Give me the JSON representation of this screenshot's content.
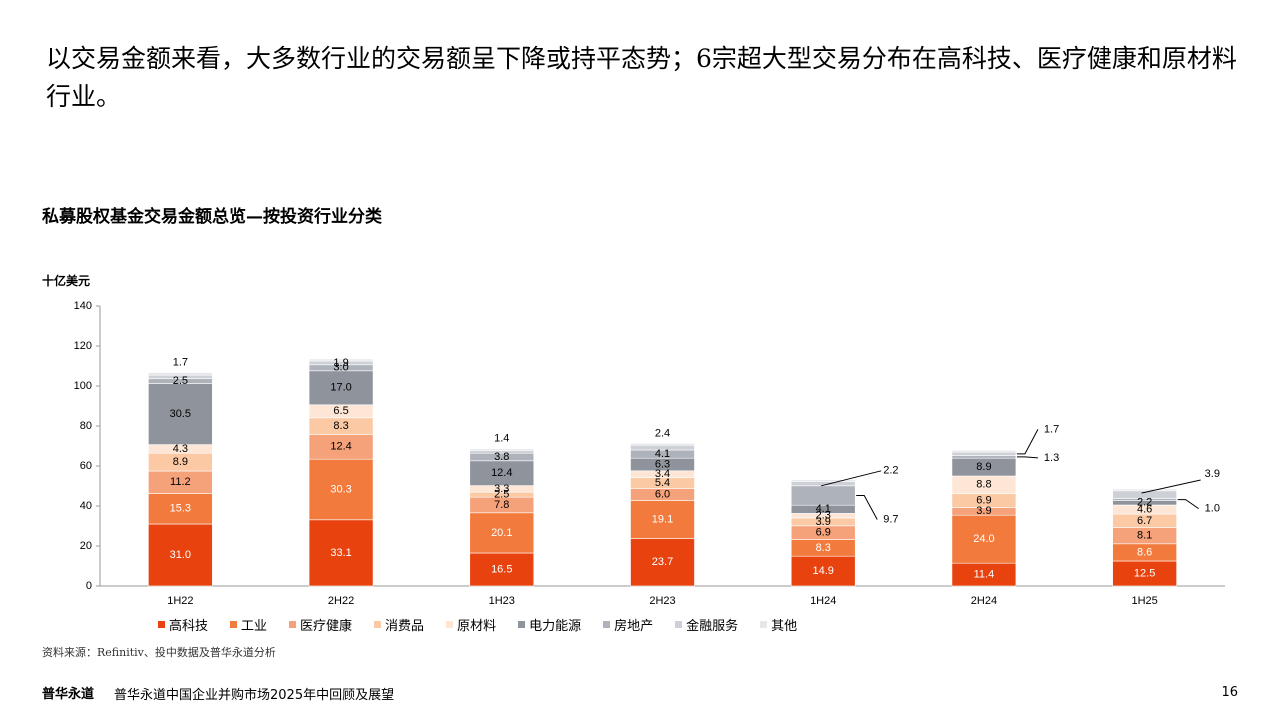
{
  "headline": "以交易金额来看，大多数行业的交易额呈下降或持平态势；6宗超大型交易分布在高科技、医疗健康和原材料行业。",
  "chart_title": "私募股权基金交易金额总览—按投资行业分类",
  "footer": {
    "source": "资料来源：Refinitiv、投中数据及普华永道分析",
    "brand": "普华永道",
    "report_title": "普华永道中国企业并购市场2025年中回顾及展望",
    "page_number": "16"
  },
  "chart_data": {
    "type": "bar",
    "stacked": true,
    "title": "私募股权基金交易金额总览—按投资行业分类",
    "ylabel": "十亿美元",
    "xlabel": "",
    "ylim": [
      0,
      140
    ],
    "yticks": [
      0,
      20,
      40,
      60,
      80,
      100,
      120,
      140
    ],
    "categories": [
      "1H22",
      "2H22",
      "1H23",
      "2H23",
      "1H24",
      "2H24",
      "1H25"
    ],
    "series": [
      {
        "name": "高科技",
        "color": "#E8430F",
        "label_color": "#ffffff",
        "values": [
          31.0,
          33.1,
          16.5,
          23.7,
          14.9,
          11.4,
          12.5
        ]
      },
      {
        "name": "工业",
        "color": "#F27A3C",
        "label_color": "#ffffff",
        "values": [
          15.3,
          30.3,
          20.1,
          19.1,
          8.3,
          24.0,
          8.6
        ]
      },
      {
        "name": "医疗健康",
        "color": "#F5A27A",
        "label_color": "#000000",
        "values": [
          11.2,
          12.4,
          7.8,
          6.0,
          6.9,
          3.9,
          8.1
        ]
      },
      {
        "name": "消费品",
        "color": "#FBC9A4",
        "label_color": "#000000",
        "values": [
          8.9,
          8.3,
          2.5,
          5.4,
          3.9,
          6.9,
          6.7
        ]
      },
      {
        "name": "原材料",
        "color": "#FDE6D5",
        "label_color": "#000000",
        "values": [
          4.3,
          6.5,
          3.3,
          3.4,
          2.3,
          8.8,
          4.6
        ]
      },
      {
        "name": "电力能源",
        "color": "#8F939C",
        "label_color": "#000000",
        "values": [
          30.5,
          17.0,
          12.4,
          6.3,
          4.1,
          8.9,
          2.2
        ]
      },
      {
        "name": "房地产",
        "color": "#AEB2BA",
        "label_color": "#000000",
        "values": [
          2.5,
          3.0,
          3.8,
          4.1,
          9.7,
          1.3,
          1.0
        ]
      },
      {
        "name": "金融服务",
        "color": "#CDD0D6",
        "label_color": "#000000",
        "values": [
          1.7,
          1.9,
          1.4,
          2.4,
          2.2,
          1.7,
          3.9
        ]
      },
      {
        "name": "其他",
        "color": "#E6E7EA",
        "label_color": "#000000",
        "values": [
          1.3,
          1.0,
          0.8,
          0.9,
          0.8,
          0.9,
          0.9
        ]
      }
    ],
    "data_labels": [
      {
        "category": "1H22",
        "series": "高科技",
        "text": "31.0"
      },
      {
        "category": "1H22",
        "series": "工业",
        "text": "15.3"
      },
      {
        "category": "1H22",
        "series": "医疗健康",
        "text": "11.2"
      },
      {
        "category": "1H22",
        "series": "消费品",
        "text": "8.9"
      },
      {
        "category": "1H22",
        "series": "原材料",
        "text": "4.3"
      },
      {
        "category": "1H22",
        "series": "电力能源",
        "text": "30.5"
      },
      {
        "category": "1H22",
        "series": "房地产",
        "text": "2.5"
      },
      {
        "category": "1H22",
        "series": "金融服务",
        "text": "1.7",
        "position": "above"
      },
      {
        "category": "2H22",
        "series": "高科技",
        "text": "33.1"
      },
      {
        "category": "2H22",
        "series": "工业",
        "text": "30.3"
      },
      {
        "category": "2H22",
        "series": "医疗健康",
        "text": "12.4"
      },
      {
        "category": "2H22",
        "series": "消费品",
        "text": "8.3"
      },
      {
        "category": "2H22",
        "series": "原材料",
        "text": "6.5"
      },
      {
        "category": "2H22",
        "series": "电力能源",
        "text": "17.0"
      },
      {
        "category": "2H22",
        "series": "房地产",
        "text": "3.0"
      },
      {
        "category": "2H22",
        "series": "金融服务",
        "text": "1.9"
      },
      {
        "category": "1H23",
        "series": "高科技",
        "text": "16.5"
      },
      {
        "category": "1H23",
        "series": "工业",
        "text": "20.1"
      },
      {
        "category": "1H23",
        "series": "医疗健康",
        "text": "7.8"
      },
      {
        "category": "1H23",
        "series": "消费品",
        "text": "2.5"
      },
      {
        "category": "1H23",
        "series": "原材料",
        "text": "3.3"
      },
      {
        "category": "1H23",
        "series": "电力能源",
        "text": "12.4"
      },
      {
        "category": "1H23",
        "series": "房地产",
        "text": "3.8"
      },
      {
        "category": "1H23",
        "series": "金融服务",
        "text": "1.4",
        "position": "above"
      },
      {
        "category": "2H23",
        "series": "高科技",
        "text": "23.7"
      },
      {
        "category": "2H23",
        "series": "工业",
        "text": "19.1"
      },
      {
        "category": "2H23",
        "series": "医疗健康",
        "text": "6.0"
      },
      {
        "category": "2H23",
        "series": "消费品",
        "text": "5.4"
      },
      {
        "category": "2H23",
        "series": "原材料",
        "text": "3.4"
      },
      {
        "category": "2H23",
        "series": "电力能源",
        "text": "6.3"
      },
      {
        "category": "2H23",
        "series": "房地产",
        "text": "4.1"
      },
      {
        "category": "2H23",
        "series": "金融服务",
        "text": "2.4",
        "position": "above"
      },
      {
        "category": "1H24",
        "series": "高科技",
        "text": "14.9"
      },
      {
        "category": "1H24",
        "series": "工业",
        "text": "8.3"
      },
      {
        "category": "1H24",
        "series": "医疗健康",
        "text": "6.9"
      },
      {
        "category": "1H24",
        "series": "消费品",
        "text": "3.9"
      },
      {
        "category": "1H24",
        "series": "原材料",
        "text": "2.3"
      },
      {
        "category": "1H24",
        "series": "电力能源",
        "text": "4.1"
      },
      {
        "category": "1H24",
        "series": "房地产",
        "text": "9.7",
        "position": "callout"
      },
      {
        "category": "1H24",
        "series": "金融服务",
        "text": "2.2",
        "position": "callout"
      },
      {
        "category": "2H24",
        "series": "高科技",
        "text": "11.4"
      },
      {
        "category": "2H24",
        "series": "工业",
        "text": "24.0"
      },
      {
        "category": "2H24",
        "series": "医疗健康",
        "text": "3.9"
      },
      {
        "category": "2H24",
        "series": "消费品",
        "text": "6.9"
      },
      {
        "category": "2H24",
        "series": "原材料",
        "text": "8.8"
      },
      {
        "category": "2H24",
        "series": "电力能源",
        "text": "8.9"
      },
      {
        "category": "2H24",
        "series": "房地产",
        "text": "1.3",
        "position": "callout"
      },
      {
        "category": "2H24",
        "series": "金融服务",
        "text": "1.7",
        "position": "callout"
      },
      {
        "category": "1H25",
        "series": "高科技",
        "text": "12.5"
      },
      {
        "category": "1H25",
        "series": "工业",
        "text": "8.6"
      },
      {
        "category": "1H25",
        "series": "医疗健康",
        "text": "8.1"
      },
      {
        "category": "1H25",
        "series": "消费品",
        "text": "6.7"
      },
      {
        "category": "1H25",
        "series": "原材料",
        "text": "4.6"
      },
      {
        "category": "1H25",
        "series": "电力能源",
        "text": "2.2"
      },
      {
        "category": "1H25",
        "series": "房地产",
        "text": "1.0",
        "position": "callout"
      },
      {
        "category": "1H25",
        "series": "金融服务",
        "text": "3.9",
        "position": "callout"
      }
    ]
  }
}
